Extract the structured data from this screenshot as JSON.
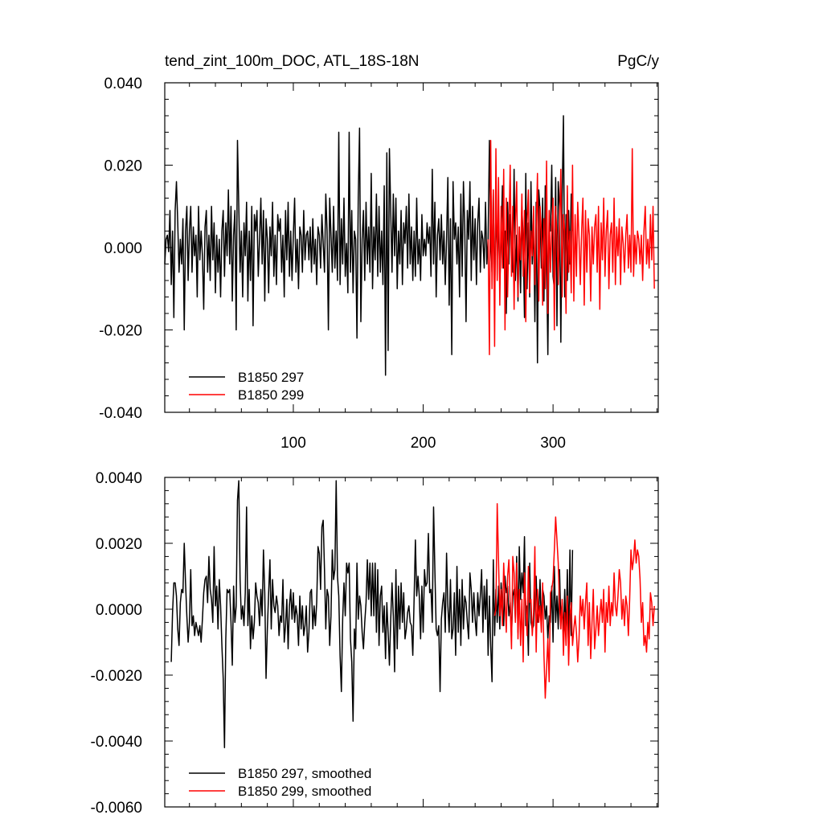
{
  "chart_data": [
    {
      "type": "line",
      "title": "tend_zint_100m_DOC, ATL_18S-18N",
      "units": "PgC/y",
      "xlim": [
        1,
        381
      ],
      "ylim": [
        -0.04,
        0.04
      ],
      "x_ticks": [
        100,
        200,
        300
      ],
      "x_tick_labels": [
        "100",
        "200",
        "300"
      ],
      "y_ticks": [
        -0.04,
        -0.02,
        0.0,
        0.02,
        0.04
      ],
      "y_tick_labels": [
        "-0.040",
        "-0.020",
        "0.000",
        "0.020",
        "0.040"
      ],
      "grid": false,
      "legend_position": "bottom-left",
      "series": [
        {
          "name": "B1850 297",
          "color": "#000000",
          "x_start": 1,
          "values": [
            -0.004,
            0.002,
            0.003,
            -0.001,
            0.009,
            -0.009,
            0.004,
            -0.017,
            0.009,
            0.016,
            0.006,
            -0.006,
            0.002,
            -0.004,
            0.007,
            -0.02,
            0.004,
            0.01,
            -0.008,
            0.004,
            0.01,
            -0.006,
            0.005,
            -0.002,
            0.003,
            -0.012,
            0.01,
            -0.003,
            0.004,
            -0.002,
            -0.015,
            0.005,
            0.009,
            -0.006,
            0.003,
            -0.008,
            0.01,
            -0.003,
            0.006,
            -0.011,
            0.003,
            -0.006,
            0.002,
            -0.012,
            0.004,
            0.009,
            -0.007,
            0.006,
            -0.002,
            0.014,
            -0.004,
            0.01,
            -0.013,
            0.003,
            0.009,
            -0.02,
            0.026,
            0.01,
            -0.006,
            0.004,
            -0.012,
            0.006,
            -0.002,
            0.011,
            -0.013,
            0.004,
            -0.008,
            0.01,
            -0.019,
            0.008,
            0.004,
            0.009,
            -0.007,
            0.002,
            0.012,
            -0.004,
            0.009,
            -0.013,
            0.007,
            0.002,
            -0.011,
            0.005,
            -0.002,
            0.011,
            -0.007,
            0.003,
            -0.009,
            0.008,
            0.004,
            0.007,
            -0.006,
            0.003,
            -0.012,
            0.009,
            -0.003,
            0.011,
            -0.007,
            0.004,
            -0.008,
            0.003,
            0.012,
            -0.006,
            0.002,
            -0.01,
            0.005,
            0.003,
            -0.006,
            0.009,
            -0.003,
            0.003,
            0.004,
            -0.003,
            0.005,
            -0.006,
            0.007,
            -0.004,
            0.002,
            -0.009,
            0.005,
            0.003,
            -0.005,
            0.008,
            0.001,
            -0.006,
            0.013,
            0.004,
            -0.02,
            0.012,
            0.003,
            -0.006,
            0.01,
            -0.005,
            0.004,
            -0.008,
            0.028,
            -0.009,
            0.007,
            -0.004,
            0.012,
            -0.007,
            0.001,
            -0.011,
            0.028,
            -0.006,
            0.009,
            -0.011,
            0.004,
            0.002,
            -0.022,
            0.012,
            0.029,
            -0.018,
            0.002,
            0.009,
            -0.008,
            0.011,
            -0.004,
            0.005,
            -0.006,
            0.018,
            -0.01,
            0.005,
            -0.003,
            0.013,
            -0.007,
            0.01,
            -0.006,
            0.004,
            -0.009,
            0.015,
            -0.031,
            0.023,
            -0.025,
            0.024,
            0.009,
            -0.006,
            0.013,
            -0.002,
            0.012,
            -0.01,
            0.004,
            -0.004,
            0.009,
            -0.009,
            0.006,
            0.001,
            0.01,
            -0.005,
            0.013,
            -0.004,
            0.005,
            -0.008,
            0.004,
            -0.007,
            0.012,
            -0.004,
            0.002,
            -0.008,
            0.008,
            -0.002,
            0.002,
            -0.002,
            0.006,
            0.001,
            0.005,
            -0.007,
            0.019,
            -0.004,
            0.011,
            -0.012,
            0.003,
            0.007,
            -0.003,
            0.008,
            -0.004,
            0.004,
            -0.009,
            0.002,
            0.017,
            -0.014,
            0.007,
            -0.026,
            0.016,
            0.002,
            0.006,
            -0.004,
            0.005,
            -0.012,
            0.013,
            -0.007,
            0.016,
            0.005,
            -0.018,
            0.009,
            0.002,
            0.016,
            -0.008,
            0.01,
            -0.003,
            0.007,
            -0.009,
            0.006,
            0.012,
            -0.006,
            0.004,
            0.002,
            -0.005,
            0.011,
            -0.004,
            0.002,
            0.026,
            0.003,
            -0.006,
            0.014,
            -0.013,
            0.01,
            -0.002,
            0.006,
            -0.009,
            0.002,
            0.015,
            -0.005,
            0.004,
            -0.016,
            0.011,
            -0.004,
            0.008,
            0.002,
            -0.006,
            0.019,
            -0.008,
            0.003,
            -0.013,
            0.005,
            -0.011,
            0.01,
            0.002,
            -0.017,
            0.018,
            -0.01,
            0.006,
            -0.012,
            0.016,
            -0.004,
            0.007,
            -0.018,
            0.011,
            -0.028,
            0.014,
            0.009,
            -0.005,
            0.012,
            -0.013,
            0.015,
            -0.003,
            -0.026,
            0.006,
            0.004,
            0.02,
            -0.007,
            -0.01,
            0.017,
            -0.019,
            0.016,
            0.01,
            -0.023,
            0.012,
            0.032,
            -0.012,
            0.008,
            -0.008,
            0.009,
            -0.004,
            0.013,
            0.004
          ]
        },
        {
          "name": "B1850 299",
          "color": "#ff0000",
          "x_start": 250,
          "values": [
            0.002,
            -0.026,
            0.026,
            -0.01,
            0.014,
            -0.024,
            0.024,
            -0.008,
            0.017,
            -0.014,
            0.01,
            -0.005,
            0.019,
            -0.02,
            0.012,
            -0.012,
            0.004,
            0.02,
            -0.007,
            0.01,
            -0.015,
            0.006,
            0.016,
            -0.012,
            0.005,
            -0.003,
            0.013,
            -0.007,
            0.009,
            -0.018,
            0.006,
            0.014,
            -0.011,
            0.004,
            -0.002,
            0.01,
            -0.009,
            0.004,
            0.018,
            -0.013,
            0.01,
            0.004,
            -0.014,
            0.007,
            -0.01,
            0.021,
            -0.016,
            0.009,
            -0.006,
            0.004,
            0.012,
            -0.02,
            0.01,
            0.003,
            -0.009,
            0.006,
            0.019,
            -0.012,
            0.008,
            0.004,
            -0.016,
            0.015,
            -0.006,
            0.004,
            -0.011,
            0.02,
            -0.013,
            0.008,
            -0.007,
            0.011,
            0.002,
            -0.009,
            0.004,
            0.012,
            -0.014,
            0.009,
            -0.006,
            0.007,
            0.003,
            -0.013,
            0.005,
            -0.004,
            0.005,
            0.008,
            -0.006,
            0.01,
            -0.015,
            0.006,
            -0.003,
            0.012,
            -0.007,
            0.004,
            0.009,
            -0.01,
            0.003,
            0.006,
            -0.006,
            0.012,
            -0.009,
            0.005,
            -0.002,
            0.007,
            -0.009,
            0.005,
            0.001,
            -0.006,
            0.003,
            0.008,
            -0.005,
            0.003,
            -0.006,
            0.024,
            -0.007,
            0.003,
            -0.004,
            0.004,
            0.002,
            -0.004,
            0.003,
            -0.008,
            0.004,
            0.01,
            -0.004,
            0.002,
            -0.005,
            0.008,
            -0.003,
            0.01,
            -0.01
          ]
        }
      ]
    },
    {
      "type": "line",
      "title": "",
      "xlim": [
        1,
        381
      ],
      "ylim": [
        -0.006,
        0.004
      ],
      "x_ticks": [
        100,
        200,
        300
      ],
      "y_ticks": [
        -0.006,
        -0.004,
        -0.002,
        0.0,
        0.002,
        0.004
      ],
      "y_tick_labels": [
        "-0.0060",
        "-0.0040",
        "-0.0020",
        "0.0000",
        "0.0020",
        "0.0040"
      ],
      "grid": false,
      "legend_position": "bottom-left",
      "series": [
        {
          "name": "B1850 297, smoothed",
          "color": "#000000",
          "x_start": 6,
          "values": [
            -0.0016,
            -0.0001,
            0.0008,
            0.0008,
            0.0004,
            -0.0006,
            -0.0011,
            0.0002,
            0.0006,
            0.0005,
            0.002,
            0.0008,
            -0.0002,
            -0.001,
            -0.0004,
            0.0012,
            -0.0005,
            -0.0002,
            -0.0008,
            -0.0004,
            -0.0006,
            -0.0008,
            -0.0005,
            -0.001,
            -0.0003,
            0.0005,
            0.0009,
            0.001,
            0.0002,
            0.0016,
            0.0006,
            0.0003,
            -0.0004,
            0.0019,
            0.0001,
            0.0007,
            -0.0006,
            0.0009,
            0.0001,
            -0.0011,
            -0.0021,
            -0.0042,
            -0.0009,
            0.0006,
            0.0005,
            0.0006,
            -0.0004,
            -0.0017,
            0.0007,
            -0.0004,
            0.0001,
            0.0033,
            0.0039,
            0.0009,
            -0.0003,
            0.0001,
            -0.0005,
            0.0005,
            0.0031,
            -0.0005,
            0.0006,
            -0.0012,
            -0.0002,
            -0.0009,
            -0.0004,
            0.0008,
            0.0004,
            0.0002,
            -0.0005,
            0.0006,
            -0.0002,
            0.0018,
            0.0005,
            -0.0021,
            -0.0006,
            0.0005,
            0.0015,
            -0.0006,
            0.0009,
            0.0001,
            -0.0001,
            0.0004,
            0.0001,
            -0.0008,
            -0.0002,
            -0.0004,
            0.0009,
            -0.001,
            -0.0005,
            0.0003,
            -0.0012,
            0.0001,
            0.0006,
            -0.0003,
            0.0005,
            -0.0004,
            0.0001,
            -0.0002,
            -0.0011,
            0.0004,
            -0.0006,
            0.0001,
            -0.0008,
            -0.0005,
            0.0001,
            -0.0013,
            -0.0007,
            0.0005,
            0.0006,
            -0.0006,
            0.0001,
            -0.0005,
            0.0002,
            0.0019,
            0.0017,
            0.0006,
            0.0025,
            0.0027,
            0.0012,
            -0.0006,
            0.0006,
            0.0004,
            -0.0011,
            -0.0002,
            0.0018,
            0.0009,
            0.0012,
            0.0039,
            0.001,
            0.0004,
            -0.0014,
            -0.0025,
            -0.0003,
            0.0008,
            -0.0002,
            0.0014,
            0.0011,
            0.0014,
            -0.0009,
            -0.0016,
            -0.0034,
            -0.0006,
            -0.0012,
            0.0014,
            -0.0003,
            0.0004,
            0.0001,
            -0.0007,
            -0.0012,
            -0.0004,
            0.0002,
            0.0015,
            0.0003,
            0.0014,
            -0.0002,
            0.0014,
            -0.0002,
            0.0014,
            -0.0007,
            0.0012,
            -0.0011,
            0.0004,
            0.0007,
            -0.0007,
            0.0001,
            -0.0015,
            0.0002,
            -0.0007,
            -0.0017,
            -0.0003,
            0.0008,
            -0.0002,
            -0.0019,
            0.0012,
            -0.0012,
            0.0007,
            -0.0006,
            0.0008,
            -0.0004,
            0.0005,
            -0.0009,
            -0.0006,
            -0.0001,
            0.0001,
            -0.0004,
            -0.0005,
            -0.0014,
            0.0003,
            0.0021,
            0.0004,
            0.001,
            0.0004,
            -0.0009,
            0.0007,
            -0.0007,
            0.0012,
            0.0007,
            0.0008,
            0.0023,
            0.0005,
            0.0006,
            -0.0004,
            0.0031,
            0.0012,
            -0.0006,
            -0.0008,
            -0.0005,
            -0.0025,
            -0.0003,
            0.0002,
            0.0005,
            -0.0007,
            0.0017,
            0.0001,
            -0.0007,
            0.0009,
            -0.0009,
            -0.0006,
            0.0005,
            -0.0014,
            0.0013,
            -0.0007,
            0.0006,
            -0.0011,
            0.0009,
            -0.0006,
            0.0004,
            0.0002,
            -0.0004,
            -0.0009,
            0.0011,
            0.0006,
            -0.0004,
            0.0005,
            -0.0003,
            -0.0008,
            0.0005,
            -0.0002,
            0.0004,
            0.0012,
            -0.0007,
            0.0007,
            -0.0003,
            0.0009,
            -0.0014,
            0.0004,
            -0.0011,
            -0.0022,
            0.0015,
            -0.0008,
            0.0006,
            -0.0004,
            0.0007,
            -0.0006,
            0.0008,
            0.0002,
            -0.0005,
            0.001,
            0.0005,
            0.0007,
            -0.0002,
            0.0002,
            -0.0008,
            0.0004,
            0.0006,
            -0.0003,
            0.0016,
            -0.0007,
            0.0019,
            0.0003,
            0.0011,
            0.0005,
            0.0022,
            -0.0005,
            0.0001,
            -0.0014,
            0.0014,
            -0.0004,
            -0.0006,
            -0.0005,
            0.0004,
            0.001,
            -0.0004,
            -0.0001,
            0.0009,
            -0.0005,
            0.0006,
            0.0004,
            -0.0003,
            0.0001,
            -0.0009,
            -0.0002,
            -0.0004,
            0.0007,
            -0.001,
            0.0013,
            -0.0004,
            0.0004,
            -0.0006,
            0.0012,
            -0.0004,
            0.0002,
            -0.0008,
            0.0006,
            -0.0009,
            0.0012,
            -0.0011,
            0.0018,
            -0.0008,
            0.0018
          ]
        },
        {
          "name": "B1850 299, smoothed",
          "color": "#ff0000",
          "x_start": 255,
          "values": [
            -0.0002,
            0.0,
            0.0032,
            0.0015,
            -0.0002,
            0.0006,
            -0.0005,
            0.0014,
            0.0003,
            -0.0007,
            0.001,
            0.0015,
            0.0001,
            -0.0012,
            0.0016,
            0.0011,
            -0.0004,
            0.0014,
            -0.0009,
            0.0006,
            -0.0011,
            0.0003,
            -0.0016,
            0.0011,
            0.0001,
            -0.0008,
            0.0013,
            0.0002,
            0.0003,
            -0.0008,
            -0.0001,
            0.0019,
            -0.0013,
            0.0006,
            -0.0004,
            0.0001,
            -0.0007,
            0.0008,
            -0.0014,
            -0.0027,
            -0.0018,
            -0.0009,
            -0.0022,
            0.0005,
            0.0006,
            0.0009,
            0.0018,
            0.0028,
            0.0021,
            0.0014,
            0.0001,
            -0.0006,
            0.0003,
            -0.0014,
            -0.0001,
            -0.0011,
            0.0004,
            -0.0017,
            -0.0002,
            0.0002,
            -0.0011,
            -0.0006,
            -0.0002,
            -0.0007,
            -0.0016,
            -0.0009,
            0.0004,
            -0.0002,
            0.0003,
            -0.0006,
            0.0002,
            0.0008,
            -0.0011,
            0.0002,
            -0.0015,
            -0.0004,
            0.0006,
            -0.0012,
            -0.0006,
            0.0001,
            -0.0008,
            -0.0002,
            0.0003,
            -0.0004,
            0.0006,
            -0.0013,
            0.0002,
            -0.0004,
            0.0007,
            -0.0005,
            0.0002,
            -0.0002,
            0.0011,
            0.0001,
            -0.0002,
            0.0004,
            0.0012,
            0.0008,
            -0.0003,
            0.0003,
            -0.0005,
            0.0004,
            0.0001,
            -0.0008,
            0.0003,
            0.0018,
            0.0012,
            0.0015,
            0.0021,
            0.0014,
            0.0018,
            0.0016,
            0.0009,
            -0.0004,
            0.0002,
            -0.0011,
            -0.0008,
            -0.0013,
            -0.0004,
            -0.0009,
            0.0005,
            0.0002,
            -0.0005,
            0.0001
          ]
        }
      ]
    }
  ]
}
